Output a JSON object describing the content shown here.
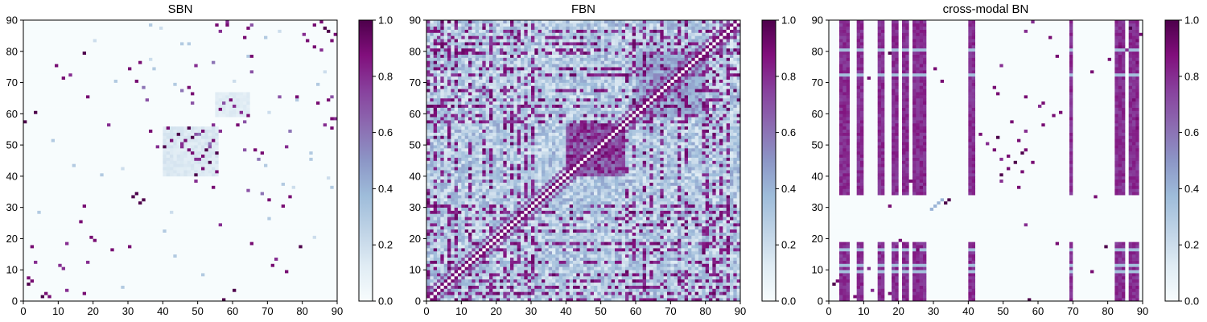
{
  "chart_data": [
    {
      "type": "heatmap",
      "title": "SBN",
      "xlim": [
        0,
        90
      ],
      "ylim": [
        0,
        90
      ],
      "xticks": [
        0,
        10,
        20,
        30,
        40,
        50,
        60,
        70,
        80,
        90
      ],
      "yticks": [
        0,
        10,
        20,
        30,
        40,
        50,
        60,
        70,
        80,
        90
      ],
      "colorbar": {
        "range": [
          0.0,
          1.0
        ],
        "ticks": [
          "0.0",
          "0.2",
          "0.4",
          "0.6",
          "0.8",
          "1.0"
        ]
      },
      "grid": false,
      "symmetric": true,
      "background_value": 0.0,
      "regions": [],
      "blocks": [
        {
          "rows": [
            40,
            56
          ],
          "cols": [
            40,
            56
          ],
          "value": 0.18
        },
        {
          "rows": [
            59,
            67
          ],
          "cols": [
            55,
            65
          ],
          "value": 0.15
        }
      ],
      "points": [
        [
          0,
          57,
          1.0
        ],
        [
          1,
          7,
          0.9
        ],
        [
          2,
          17,
          0.9
        ],
        [
          3,
          12,
          0.8
        ],
        [
          5,
          1,
          1.0
        ],
        [
          6,
          2,
          0.9
        ],
        [
          9,
          75,
          0.9
        ],
        [
          10,
          11,
          0.8
        ],
        [
          12,
          18,
          0.8
        ],
        [
          16,
          25,
          0.9
        ],
        [
          17,
          79,
          1.0
        ],
        [
          18,
          65,
          0.9
        ],
        [
          19,
          20,
          0.9
        ],
        [
          24,
          56,
          0.8
        ],
        [
          30,
          17,
          0.9
        ],
        [
          31,
          33,
          1.0
        ],
        [
          32,
          34,
          1.0
        ],
        [
          33,
          76,
          0.9
        ],
        [
          34,
          68,
          0.6
        ],
        [
          35,
          64,
          0.7
        ],
        [
          36,
          54,
          0.9
        ],
        [
          38,
          49,
          0.8
        ],
        [
          40,
          49,
          1.0
        ],
        [
          41,
          55,
          0.9
        ],
        [
          42,
          51,
          0.9
        ],
        [
          44,
          53,
          1.0
        ],
        [
          45,
          49,
          0.8
        ],
        [
          46,
          51,
          0.9
        ],
        [
          47,
          55,
          1.0
        ],
        [
          48,
          47,
          0.9
        ],
        [
          49,
          53,
          0.7
        ],
        [
          50,
          45,
          0.8
        ],
        [
          51,
          54,
          0.9
        ],
        [
          52,
          48,
          1.0
        ],
        [
          53,
          50,
          0.6
        ],
        [
          54,
          56,
          0.8
        ],
        [
          55,
          88,
          0.9
        ],
        [
          56,
          61,
          0.9
        ],
        [
          57,
          63,
          0.7
        ],
        [
          58,
          88,
          0.9
        ],
        [
          59,
          64,
          0.9
        ],
        [
          60,
          3,
          1.0
        ],
        [
          62,
          60,
          0.8
        ],
        [
          63,
          48,
          0.7
        ],
        [
          64,
          87,
          0.9
        ],
        [
          66,
          48,
          0.9
        ],
        [
          67,
          45,
          0.6
        ],
        [
          68,
          47,
          0.9
        ],
        [
          70,
          32,
          0.9
        ],
        [
          71,
          11,
          0.9
        ],
        [
          72,
          13,
          0.8
        ],
        [
          73,
          65,
          0.7
        ],
        [
          74,
          30,
          0.9
        ],
        [
          75,
          49,
          0.8
        ],
        [
          76,
          54,
          0.6
        ],
        [
          78,
          65,
          0.9
        ],
        [
          79,
          17,
          1.0
        ],
        [
          80,
          85,
          0.8
        ],
        [
          81,
          83,
          0.9
        ],
        [
          83,
          88,
          0.9
        ],
        [
          84,
          63,
          0.9
        ],
        [
          85,
          89,
          0.9
        ],
        [
          86,
          56,
          0.8
        ],
        [
          87,
          86,
          1.0
        ],
        [
          88,
          65,
          0.7
        ],
        [
          89,
          58,
          0.8
        ],
        [
          4,
          28,
          0.3
        ],
        [
          8,
          51,
          0.3
        ],
        [
          14,
          43,
          0.3
        ],
        [
          20,
          83,
          0.2
        ],
        [
          22,
          40,
          0.3
        ],
        [
          26,
          70,
          0.3
        ],
        [
          28,
          42,
          0.2
        ],
        [
          37,
          74,
          0.3
        ],
        [
          39,
          87,
          0.2
        ],
        [
          43,
          69,
          0.3
        ],
        [
          47,
          82,
          0.3
        ],
        [
          60,
          70,
          0.2
        ],
        [
          64,
          78,
          0.3
        ],
        [
          69,
          84,
          0.3
        ],
        [
          77,
          36,
          0.2
        ],
        [
          82,
          45,
          0.3
        ],
        [
          86,
          73,
          0.2
        ],
        [
          88,
          36,
          0.3
        ]
      ]
    },
    {
      "type": "heatmap",
      "title": "FBN",
      "xlim": [
        0,
        90
      ],
      "ylim": [
        0,
        90
      ],
      "xticks": [
        0,
        10,
        20,
        30,
        40,
        50,
        60,
        70,
        80,
        90
      ],
      "yticks": [
        0,
        10,
        20,
        30,
        40,
        50,
        60,
        70,
        80,
        90
      ],
      "colorbar": {
        "range": [
          0.0,
          1.0
        ],
        "ticks": [
          "0.0",
          "0.2",
          "0.4",
          "0.6",
          "0.8",
          "1.0"
        ]
      },
      "grid": false,
      "symmetric": true,
      "background_value": 0.3,
      "strong_rows": [
        0,
        2,
        4,
        6,
        8,
        12,
        16,
        18,
        22,
        24,
        26,
        28,
        30,
        57,
        59,
        62,
        64,
        67,
        72,
        74,
        79,
        80,
        82,
        84,
        86
      ],
      "strong_value": 0.75,
      "strong_fraction": 0.45,
      "blocks": [
        {
          "rows": [
            40,
            57
          ],
          "cols": [
            40,
            57
          ],
          "value": 0.92
        },
        {
          "rows": [
            60,
            80
          ],
          "cols": [
            60,
            80
          ],
          "value": 0.55
        }
      ],
      "diagonal": [
        {
          "offset": 1,
          "value": 0.9
        },
        {
          "offset": 3,
          "value": 0.7
        }
      ],
      "points": []
    },
    {
      "type": "heatmap",
      "title": "cross-modal BN",
      "xlim": [
        0,
        90
      ],
      "ylim": [
        0,
        90
      ],
      "xticks": [
        0,
        10,
        20,
        30,
        40,
        50,
        60,
        70,
        80,
        90
      ],
      "yticks": [
        0,
        10,
        20,
        30,
        40,
        50,
        60,
        70,
        80,
        90
      ],
      "colorbar": {
        "range": [
          0.0,
          1.0
        ],
        "ticks": [
          "0.0",
          "0.2",
          "0.4",
          "0.6",
          "0.8",
          "1.0"
        ]
      },
      "grid": false,
      "background_value": 0.0,
      "stripes": [
        {
          "cols": [
            3,
            6
          ],
          "value": 0.82
        },
        {
          "cols": [
            8,
            10
          ],
          "value": 0.82
        },
        {
          "cols": [
            14,
            16
          ],
          "value": 0.82
        },
        {
          "cols": [
            18,
            20
          ],
          "value": 0.82
        },
        {
          "cols": [
            21,
            23
          ],
          "value": 0.82
        },
        {
          "cols": [
            24,
            28
          ],
          "value": 0.82
        },
        {
          "cols": [
            40,
            42
          ],
          "value": 0.82
        },
        {
          "cols": [
            69,
            70
          ],
          "value": 0.82
        },
        {
          "cols": [
            82,
            85
          ],
          "value": 0.82
        },
        {
          "cols": [
            86,
            89
          ],
          "value": 0.82
        }
      ],
      "stripe_gap_rows": [
        19,
        34
      ],
      "stripe_light_rows": [
        9,
        11,
        16,
        72,
        80
      ],
      "diagonal_dots": [
        [
          29,
          29
        ],
        [
          30,
          30
        ],
        [
          31,
          31
        ],
        [
          32,
          32
        ]
      ],
      "points": [
        [
          0,
          57,
          1.0
        ],
        [
          1,
          7,
          0.9
        ],
        [
          2,
          17,
          0.9
        ],
        [
          3,
          12,
          0.8
        ],
        [
          5,
          1,
          1.0
        ],
        [
          6,
          2,
          0.9
        ],
        [
          9,
          75,
          0.9
        ],
        [
          10,
          11,
          0.8
        ],
        [
          12,
          18,
          0.8
        ],
        [
          16,
          25,
          0.9
        ],
        [
          17,
          79,
          1.0
        ],
        [
          18,
          65,
          0.9
        ],
        [
          19,
          20,
          0.9
        ],
        [
          24,
          56,
          0.8
        ],
        [
          30,
          17,
          0.9
        ],
        [
          31,
          33,
          1.0
        ],
        [
          32,
          34,
          1.0
        ],
        [
          33,
          76,
          0.9
        ],
        [
          36,
          54,
          0.9
        ],
        [
          38,
          49,
          0.8
        ],
        [
          40,
          49,
          1.0
        ],
        [
          41,
          55,
          0.9
        ],
        [
          42,
          51,
          0.9
        ],
        [
          44,
          53,
          1.0
        ],
        [
          45,
          49,
          0.8
        ],
        [
          46,
          51,
          0.9
        ],
        [
          47,
          55,
          1.0
        ],
        [
          48,
          47,
          0.9
        ],
        [
          50,
          45,
          0.8
        ],
        [
          51,
          54,
          0.9
        ],
        [
          52,
          48,
          1.0
        ],
        [
          54,
          56,
          0.8
        ],
        [
          55,
          88,
          0.9
        ],
        [
          56,
          61,
          0.9
        ],
        [
          58,
          88,
          0.9
        ],
        [
          59,
          64,
          0.9
        ],
        [
          62,
          60,
          0.8
        ],
        [
          64,
          87,
          0.9
        ],
        [
          66,
          48,
          0.9
        ],
        [
          68,
          47,
          0.9
        ],
        [
          70,
          32,
          0.9
        ],
        [
          71,
          11,
          0.9
        ],
        [
          74,
          30,
          0.9
        ],
        [
          75,
          49,
          0.8
        ],
        [
          78,
          65,
          0.9
        ],
        [
          79,
          17,
          1.0
        ],
        [
          80,
          85,
          0.8
        ],
        [
          81,
          83,
          0.9
        ],
        [
          83,
          88,
          0.9
        ],
        [
          84,
          63,
          0.9
        ],
        [
          85,
          89,
          0.9
        ],
        [
          86,
          56,
          0.8
        ],
        [
          87,
          86,
          1.0
        ],
        [
          89,
          58,
          0.8
        ],
        [
          36,
          26,
          0.9
        ],
        [
          38,
          23,
          0.9
        ],
        [
          44,
          58,
          0.9
        ],
        [
          48,
          56,
          0.9
        ],
        [
          53,
          43,
          0.9
        ],
        [
          57,
          52,
          0.9
        ],
        [
          60,
          66,
          0.9
        ],
        [
          63,
          61,
          0.9
        ],
        [
          65,
          56,
          0.9
        ],
        [
          73,
          75,
          0.9
        ],
        [
          76,
          88,
          0.9
        ],
        [
          77,
          80,
          0.9
        ]
      ]
    }
  ]
}
